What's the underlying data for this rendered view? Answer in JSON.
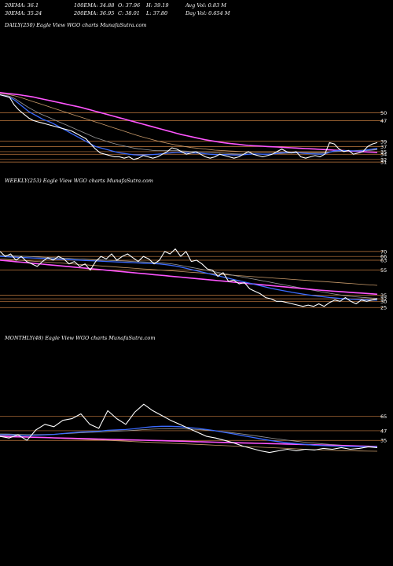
{
  "header": {
    "row1": [
      {
        "label": "20EMA: 36.1"
      },
      {
        "label": "100EMA: 34.88"
      },
      {
        "label": "O: 37.96"
      },
      {
        "label": "H: 39.19"
      },
      {
        "label": "Avg Vol: 0.83  M"
      }
    ],
    "row2": [
      {
        "label": "30EMA: 35.24"
      },
      {
        "label": "200EMA: 36.95"
      },
      {
        "label": "C: 38.01"
      },
      {
        "label": "L: 37.80"
      },
      {
        "label": "Day Vol: 0.654  M"
      }
    ]
  },
  "colors": {
    "background": "#000000",
    "price": "#ffffff",
    "ema_fast": "#3b6bff",
    "ema_pink": "#ff55ff",
    "ema_gray": "#9a9a9a",
    "ema_tan": "#c89a6a",
    "levels": "#c27a3f"
  },
  "chart_data": [
    {
      "type": "line",
      "title": "DAILY(250) Eagle  View WGO charts MunafaSutra.com",
      "y_ticks": [
        "50",
        "47",
        "39",
        "37",
        "35",
        "34",
        "32",
        "31"
      ],
      "ylim": [
        28,
        62
      ],
      "series": [
        {
          "role": "price",
          "values": [
            57,
            56.5,
            56,
            53,
            51,
            49.5,
            48,
            47,
            46.5,
            46,
            45.5,
            45,
            44.5,
            44,
            43.5,
            43,
            42,
            41,
            40,
            38,
            36,
            34.5,
            34,
            33.5,
            33,
            33,
            32.5,
            33,
            32,
            32.5,
            33.5,
            33,
            32.5,
            33,
            34,
            35,
            36.5,
            36,
            35,
            34,
            34.5,
            35,
            34,
            33,
            32.5,
            33,
            34,
            33.5,
            33,
            32.5,
            33,
            34,
            35,
            34,
            33.5,
            33,
            33.5,
            34,
            35,
            36,
            35,
            34.5,
            35,
            33,
            32.5,
            33,
            33.5,
            33,
            34,
            38.5,
            38,
            36,
            35,
            35.5,
            34,
            34.5,
            35,
            37,
            38,
            38.5
          ]
        },
        {
          "role": "ema_fast",
          "values": [
            57,
            56.5,
            56,
            55,
            53.5,
            52,
            50.5,
            49.5,
            48.5,
            47.5,
            46.8,
            46,
            45,
            44,
            43,
            42,
            41,
            40,
            39,
            38,
            37,
            36.5,
            36,
            35.5,
            35,
            34.6,
            34.3,
            34,
            33.8,
            33.7,
            33.7,
            33.8,
            33.9,
            34,
            34.2,
            34.4,
            34.6,
            34.7,
            34.7,
            34.6,
            34.5,
            34.5,
            34.4,
            34.2,
            34,
            33.9,
            33.9,
            33.9,
            33.8,
            33.7,
            33.7,
            33.8,
            34,
            34.1,
            34.1,
            34,
            34,
            34.1,
            34.3,
            34.6,
            34.7,
            34.7,
            34.7,
            34.5,
            34.3,
            34.2,
            34.1,
            34,
            34.1,
            34.8,
            35.3,
            35.4,
            35.4,
            35.4,
            35.3,
            35.3,
            35.4,
            35.7,
            36,
            36.3
          ]
        },
        {
          "role": "ema_gray",
          "values": [
            57,
            56.8,
            56.4,
            55.6,
            54.4,
            53.2,
            52,
            51,
            50,
            49.2,
            48.4,
            47.6,
            46.8,
            46,
            45.2,
            44.4,
            43.6,
            42.8,
            42,
            41.2,
            40.4,
            39.8,
            39.2,
            38.6,
            38.1,
            37.6,
            37.2,
            36.8,
            36.4,
            36.1,
            35.9,
            35.7,
            35.5,
            35.4,
            35.4,
            35.4,
            35.4,
            35.4,
            35.3,
            35.2,
            35.1,
            35,
            34.9,
            34.8,
            34.7,
            34.6,
            34.5,
            34.4,
            34.3,
            34.2,
            34.1,
            34.1,
            34.1,
            34.1,
            34.1,
            34.1,
            34.1,
            34.1,
            34.2,
            34.3,
            34.4,
            34.5,
            34.5,
            34.5,
            34.5,
            34.4,
            34.4,
            34.4,
            34.5,
            34.8,
            35,
            35.1,
            35.2,
            35.2,
            35.2,
            35.2,
            35.3,
            35.4,
            35.6,
            35.8
          ]
        },
        {
          "role": "ema_tan",
          "values": [
            57.5,
            57.3,
            57,
            56.6,
            56.1,
            55.5,
            54.9,
            54.3,
            53.7,
            53.1,
            52.5,
            51.9,
            51.3,
            50.7,
            50.1,
            49.5,
            48.9,
            48.3,
            47.7,
            47.1,
            46.5,
            45.9,
            45.3,
            44.7,
            44.1,
            43.5,
            42.9,
            42.3,
            41.7,
            41.1,
            40.6,
            40.1,
            39.6,
            39.1,
            38.7,
            38.3,
            37.9,
            37.5,
            37.2,
            36.9,
            36.6,
            36.4,
            36.2,
            36,
            35.8,
            35.6,
            35.5,
            35.4,
            35.3,
            35.2,
            35.1,
            35,
            34.9,
            34.9,
            34.8,
            34.8,
            34.8,
            34.8,
            34.8,
            34.8,
            34.8,
            34.8,
            34.8,
            34.8,
            34.8,
            34.8,
            34.8,
            34.8,
            34.8,
            34.9,
            35,
            35.1,
            35.2,
            35.3,
            35.4,
            35.5,
            35.6,
            35.7,
            35.8,
            35.9
          ]
        },
        {
          "role": "ema_pink",
          "values": [
            57.8,
            57.6,
            57.4,
            57.2,
            57,
            56.7,
            56.4,
            56.1,
            55.7,
            55.3,
            54.9,
            54.5,
            54.1,
            53.7,
            53.3,
            52.9,
            52.5,
            52.1,
            51.6,
            51.1,
            50.6,
            50.1,
            49.6,
            49.1,
            48.6,
            48.1,
            47.6,
            47.1,
            46.6,
            46.1,
            45.6,
            45.1,
            44.6,
            44.1,
            43.6,
            43.1,
            42.6,
            42.1,
            41.6,
            41.2,
            40.8,
            40.4,
            40,
            39.6,
            39.3,
            39,
            38.7,
            38.4,
            38.2,
            38,
            37.8,
            37.6,
            37.4,
            37.3,
            37.2,
            37.1,
            37,
            36.9,
            36.8,
            36.7,
            36.6,
            36.5,
            36.4,
            36.3,
            36.2,
            36.1,
            36,
            35.9,
            35.8,
            35.7,
            35.6,
            35.5,
            35.4,
            35.3,
            35.2,
            35.1,
            35,
            34.9,
            34.8,
            34.7
          ]
        }
      ]
    },
    {
      "type": "line",
      "title": "WEEKLY(253) Eagle  View WGO charts MunafaSutra.com",
      "y_ticks": [
        "70",
        "66",
        "63",
        "55",
        "35",
        "32",
        "30",
        "25"
      ],
      "ylim": [
        22,
        80
      ],
      "series": [
        {
          "role": "price",
          "values": [
            70,
            66,
            68,
            63,
            66,
            62,
            60,
            58,
            62,
            65,
            63,
            66,
            64,
            60,
            62,
            58,
            60,
            55,
            62,
            66,
            64,
            68,
            63,
            66,
            68,
            65,
            62,
            66,
            64,
            60,
            63,
            70,
            68,
            72,
            66,
            70,
            62,
            63,
            60,
            56,
            55,
            50,
            53,
            46,
            47,
            44,
            45,
            40,
            38,
            36,
            33,
            32,
            30,
            30,
            29,
            28,
            27,
            26,
            27,
            26,
            28,
            26,
            29,
            31,
            30,
            33,
            30,
            28,
            31,
            30,
            31,
            32
          ]
        },
        {
          "role": "ema_fast",
          "values": [
            66,
            65.8,
            65.6,
            65.4,
            65.2,
            65,
            64.8,
            64.6,
            64.4,
            64.2,
            64,
            63.8,
            63.6,
            63.4,
            63.2,
            63,
            62.8,
            62.6,
            62.4,
            62.2,
            62,
            61.8,
            61.6,
            61.4,
            61.2,
            61,
            60.8,
            60.6,
            60.4,
            60.2,
            60,
            59.5,
            59,
            58.3,
            57.5,
            56.5,
            55.5,
            54.5,
            53.5,
            52.5,
            51.5,
            50.5,
            49.5,
            48.5,
            47.5,
            46.5,
            45.5,
            44.5,
            43.5,
            42.5,
            41.5,
            40.5,
            39.6,
            38.8,
            38,
            37.2,
            36.5,
            35.8,
            35.2,
            34.6,
            34.1,
            33.6,
            33.1,
            32.7,
            32.3,
            32,
            31.7,
            31.5,
            31.3,
            31.2,
            31.1,
            31
          ]
        },
        {
          "role": "ema_gray",
          "values": [
            67,
            66.8,
            66.6,
            66.4,
            66.2,
            66,
            65.8,
            65.6,
            65.4,
            65.2,
            65,
            64.8,
            64.6,
            64.4,
            64.2,
            64,
            63.8,
            63.6,
            63.4,
            63.2,
            63,
            62.8,
            62.6,
            62.4,
            62.2,
            62,
            61.8,
            61.6,
            61.4,
            61.2,
            61,
            60.6,
            60.2,
            59.6,
            58.8,
            58,
            57.2,
            56.4,
            55.6,
            54.8,
            54,
            53.2,
            52.4,
            51.6,
            50.8,
            50,
            49.2,
            48.4,
            47.6,
            46.8,
            46,
            45.2,
            44.4,
            43.6,
            42.8,
            42,
            41.2,
            40.4,
            39.6,
            38.8,
            38,
            37.2,
            36.5,
            35.8,
            35.1,
            34.5,
            34,
            33.6,
            33.2,
            32.9,
            32.6,
            32.4
          ]
        },
        {
          "role": "ema_tan",
          "values": [
            64,
            63.8,
            63.5,
            63.2,
            62.9,
            62.6,
            62.3,
            62,
            61.7,
            61.4,
            61.1,
            60.8,
            60.5,
            60.2,
            59.9,
            59.6,
            59.3,
            59,
            58.7,
            58.4,
            58.1,
            57.8,
            57.5,
            57.2,
            56.9,
            56.6,
            56.3,
            56,
            55.7,
            55.4,
            55.1,
            54.8,
            54.5,
            54.2,
            53.9,
            53.6,
            53.3,
            53,
            52.7,
            52.4,
            52.1,
            51.8,
            51.5,
            51.2,
            50.9,
            50.6,
            50.3,
            50,
            49.7,
            49.4,
            49.1,
            48.8,
            48.5,
            48.2,
            47.9,
            47.6,
            47.3,
            47,
            46.7,
            46.4,
            46.1,
            45.8,
            45.5,
            45.2,
            44.9,
            44.6,
            44.3,
            44,
            43.7,
            43.4,
            43.1,
            42.8
          ]
        },
        {
          "role": "ema_pink",
          "values": [
            63,
            62.6,
            62.2,
            61.8,
            61.4,
            61,
            60.6,
            60.2,
            59.8,
            59.4,
            59,
            58.6,
            58.2,
            57.8,
            57.4,
            57,
            56.6,
            56.2,
            55.8,
            55.4,
            55,
            54.6,
            54.2,
            53.8,
            53.4,
            53,
            52.6,
            52.2,
            51.8,
            51.4,
            51,
            50.6,
            50.2,
            49.8,
            49.4,
            49,
            48.6,
            48.2,
            47.8,
            47.4,
            47,
            46.6,
            46.2,
            45.8,
            45.4,
            45,
            44.6,
            44.2,
            43.8,
            43.4,
            43,
            42.6,
            42.2,
            41.8,
            41.4,
            41,
            40.6,
            40.2,
            39.8,
            39.4,
            39,
            38.7,
            38.4,
            38.1,
            37.8,
            37.5,
            37.2,
            36.9,
            36.6,
            36.3,
            36,
            35.7
          ]
        }
      ]
    },
    {
      "type": "line",
      "title": "MONTHLY(48) Eagle  View WGO charts MunafaSutra.com",
      "y_ticks": [
        "65",
        "47",
        "35"
      ],
      "ylim": [
        0,
        90
      ],
      "series": [
        {
          "role": "price",
          "values": [
            40,
            38,
            42,
            35,
            48,
            55,
            52,
            60,
            62,
            68,
            55,
            50,
            72,
            62,
            55,
            70,
            80,
            72,
            66,
            60,
            55,
            50,
            45,
            40,
            38,
            35,
            32,
            28,
            25,
            22,
            20,
            22,
            24,
            22,
            24,
            23,
            25,
            24,
            26,
            24,
            25,
            27,
            26
          ]
        },
        {
          "role": "ema_fast",
          "values": [
            42,
            42,
            41.5,
            41,
            41.5,
            42,
            42.5,
            43.5,
            44.5,
            45.5,
            46,
            46.5,
            47.5,
            48,
            48.5,
            49.5,
            51,
            52,
            52.5,
            52.5,
            52,
            51,
            50,
            48.5,
            47,
            45,
            43,
            41,
            39,
            37,
            35,
            33.5,
            32,
            31,
            30,
            29,
            28.5,
            28,
            27.8,
            27.5,
            27.3,
            27.2,
            27
          ]
        },
        {
          "role": "ema_gray",
          "values": [
            43,
            42.8,
            42.5,
            42.2,
            42.2,
            42.4,
            42.7,
            43.2,
            43.8,
            44.5,
            45,
            45.4,
            46,
            46.5,
            47,
            47.6,
            48.4,
            49,
            49.4,
            49.6,
            49.5,
            49.1,
            48.5,
            47.7,
            46.8,
            45.6,
            44.3,
            42.9,
            41.4,
            39.8,
            38.2,
            36.7,
            35.2,
            33.9,
            32.7,
            31.6,
            30.6,
            29.8,
            29.1,
            28.5,
            28,
            27.6,
            27.3
          ]
        },
        {
          "role": "ema_tan",
          "values": [
            41,
            40.5,
            40,
            39.5,
            39,
            38.5,
            38,
            37.5,
            37,
            36.5,
            36,
            35.5,
            35,
            34.5,
            34,
            33.5,
            33,
            32.5,
            32,
            31.5,
            31,
            30.5,
            30,
            29.5,
            29,
            28.5,
            28,
            27.5,
            27,
            26.5,
            26,
            25.5,
            25,
            24.5,
            24,
            23.5,
            23,
            22.5,
            22.2,
            22,
            21.8,
            21.6,
            21.5
          ]
        },
        {
          "role": "ema_pink",
          "values": [
            40,
            39.7,
            39.4,
            39.1,
            38.8,
            38.5,
            38.2,
            37.9,
            37.6,
            37.3,
            37,
            36.7,
            36.4,
            36.1,
            35.8,
            35.5,
            35.2,
            34.9,
            34.6,
            34.3,
            34,
            33.7,
            33.4,
            33.1,
            32.8,
            32.5,
            32.2,
            31.9,
            31.6,
            31.3,
            31,
            30.7,
            30.4,
            30.1,
            29.8,
            29.5,
            29.2,
            28.9,
            28.6,
            28.3,
            28,
            27.7,
            27.4
          ]
        }
      ]
    }
  ]
}
